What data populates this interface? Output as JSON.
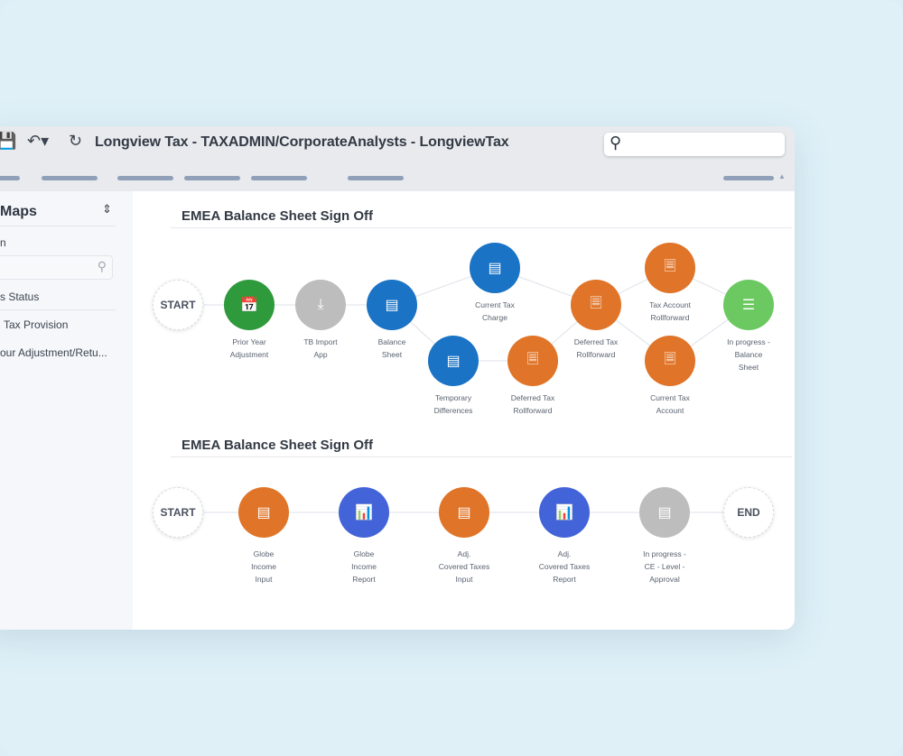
{
  "window": {
    "title": "Longview Tax - TAXADMIN/CorporateAnalysts - LongviewTax",
    "search_placeholder": ""
  },
  "sidebar": {
    "title": "Maps",
    "items": [
      "n",
      "s Status",
      "Tax Provision",
      "our Adjustment/Retu..."
    ]
  },
  "flows": [
    {
      "title": "EMEA Balance Sheet Sign Off",
      "nodes": [
        {
          "id": "start",
          "label": "START",
          "type": "terminal"
        },
        {
          "id": "pya",
          "label": "Prior Year\nAdjustment",
          "color": "#2e9a3c",
          "icon": "calendar-icon"
        },
        {
          "id": "tb",
          "label": "TB Import\nApp",
          "color": "#bdbdbd",
          "icon": "download-icon"
        },
        {
          "id": "bs",
          "label": "Balance\nSheet",
          "color": "#1a73c4",
          "icon": "form-icon"
        },
        {
          "id": "ctc",
          "label": "Current Tax\nCharge",
          "color": "#1a73c4",
          "icon": "form-icon"
        },
        {
          "id": "td",
          "label": "Temporary\nDifferences",
          "color": "#1a73c4",
          "icon": "form-icon"
        },
        {
          "id": "dtr1",
          "label": "Deferred Tax\nRollforward",
          "color": "#e07428",
          "icon": "note-icon"
        },
        {
          "id": "dtr2",
          "label": "Deferred Tax\nRollforward",
          "color": "#e07428",
          "icon": "note-icon"
        },
        {
          "id": "tar",
          "label": "Tax Account\nRollforward",
          "color": "#e07428",
          "icon": "note-icon"
        },
        {
          "id": "cta",
          "label": "Current Tax\nAccount",
          "color": "#e07428",
          "icon": "note-icon"
        },
        {
          "id": "ip",
          "label": "In progress -\nBalance\nSheet",
          "color": "#6cc860",
          "icon": "checklist-icon"
        }
      ],
      "edges": [
        [
          "start",
          "pya"
        ],
        [
          "pya",
          "tb"
        ],
        [
          "tb",
          "bs"
        ],
        [
          "bs",
          "ctc"
        ],
        [
          "bs",
          "td"
        ],
        [
          "td",
          "dtr1"
        ],
        [
          "ctc",
          "dtr2"
        ],
        [
          "dtr1",
          "dtr2"
        ],
        [
          "dtr2",
          "tar"
        ],
        [
          "dtr2",
          "cta"
        ],
        [
          "tar",
          "ip"
        ],
        [
          "cta",
          "ip"
        ]
      ]
    },
    {
      "title": "EMEA Balance Sheet Sign Off",
      "nodes": [
        {
          "id": "s2",
          "label": "START",
          "type": "terminal"
        },
        {
          "id": "gii",
          "label": "Globe\nIncome\nInput",
          "color": "#e07428",
          "icon": "form-icon"
        },
        {
          "id": "gir",
          "label": "Globe\nIncome\nReport",
          "color": "#4363d8",
          "icon": "presentation-chart-icon"
        },
        {
          "id": "aci",
          "label": "Adj.\nCovered Taxes\nInput",
          "color": "#e07428",
          "icon": "form-icon"
        },
        {
          "id": "acr",
          "label": "Adj.\nCovered Taxes\nReport",
          "color": "#4363d8",
          "icon": "presentation-chart-icon"
        },
        {
          "id": "ipc",
          "label": "In progress -\nCE - Level -\nApproval",
          "color": "#bdbdbd",
          "icon": "gantt-icon"
        },
        {
          "id": "end",
          "label": "END",
          "type": "terminal"
        }
      ],
      "edges": [
        [
          "s2",
          "gii"
        ],
        [
          "gii",
          "gir"
        ],
        [
          "gir",
          "aci"
        ],
        [
          "aci",
          "acr"
        ],
        [
          "acr",
          "ipc"
        ],
        [
          "ipc",
          "end"
        ]
      ]
    }
  ]
}
